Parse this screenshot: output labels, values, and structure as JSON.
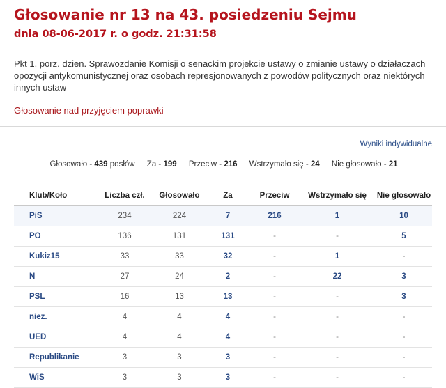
{
  "header": {
    "title": "Głosowanie nr 13 na 43. posiedzeniu Sejmu",
    "subtitle": "dnia 08-06-2017 r. o godz. 21:31:58"
  },
  "description": "Pkt 1. porz. dzien. Sprawozdanie Komisji o senackim projekcie ustawy o zmianie ustawy o działaczach opozycji antykomunistycznej oraz osobach represjonowanych z powodów politycznych oraz niektórych innych ustaw",
  "vote_type": "Głosowanie nad przyjęciem poprawki",
  "individual_results_link": "Wyniki indywidualne",
  "summary": {
    "voted_label": "Głosowało -",
    "voted_value": "439",
    "voted_unit": "posłów",
    "for_label": "Za -",
    "for_value": "199",
    "against_label": "Przeciw -",
    "against_value": "216",
    "abstained_label": "Wstrzymało się -",
    "abstained_value": "24",
    "not_voted_label": "Nie głosowało -",
    "not_voted_value": "21"
  },
  "table": {
    "headers": [
      "Klub/Koło",
      "Liczba czł.",
      "Głosowało",
      "Za",
      "Przeciw",
      "Wstrzymało się",
      "Nie głosowało"
    ],
    "rows": [
      [
        "PiS",
        "234",
        "224",
        "7",
        "216",
        "1",
        "10"
      ],
      [
        "PO",
        "136",
        "131",
        "131",
        "-",
        "-",
        "5"
      ],
      [
        "Kukiz15",
        "33",
        "33",
        "32",
        "-",
        "1",
        "-"
      ],
      [
        "N",
        "27",
        "24",
        "2",
        "-",
        "22",
        "3"
      ],
      [
        "PSL",
        "16",
        "13",
        "13",
        "-",
        "-",
        "3"
      ],
      [
        "niez.",
        "4",
        "4",
        "4",
        "-",
        "-",
        "-"
      ],
      [
        "UED",
        "4",
        "4",
        "4",
        "-",
        "-",
        "-"
      ],
      [
        "Republikanie",
        "3",
        "3",
        "3",
        "-",
        "-",
        "-"
      ],
      [
        "WiS",
        "3",
        "3",
        "3",
        "-",
        "-",
        "-"
      ]
    ]
  },
  "colors": {
    "title_red": "#b5141d",
    "link_blue": "#2a4a84"
  }
}
